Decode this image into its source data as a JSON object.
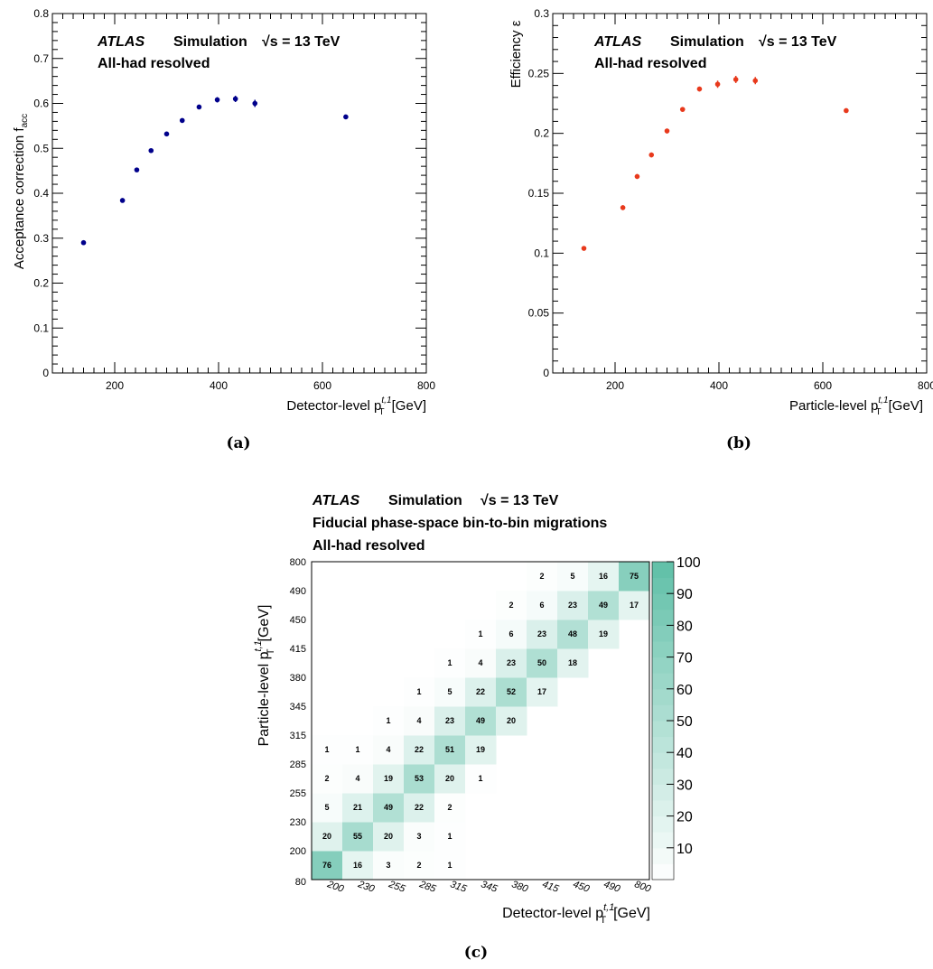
{
  "panels": [
    {
      "label": "(a)",
      "atlas": "ATLAS",
      "sim": "Simulation",
      "energy": "√s = 13 TeV",
      "subtitle": "All-had resolved"
    },
    {
      "label": "(b)",
      "atlas": "ATLAS",
      "sim": "Simulation",
      "energy": "√s = 13 TeV",
      "subtitle": "All-had resolved"
    },
    {
      "label": "(c)",
      "atlas": "ATLAS",
      "sim": "Simulation",
      "energy": "√s = 13 TeV",
      "line2": "Fiducial phase-space bin-to-bin migrations",
      "line3": "All-had resolved"
    }
  ],
  "chart_data": [
    {
      "type": "scatter",
      "ylabel": "Acceptance correction f",
      "ylabel_sub": "acc",
      "xlabel": "Detector-level p",
      "xlabel_unit": "[GeV]",
      "xlim": [
        80,
        800
      ],
      "ylim": [
        0,
        0.8
      ],
      "xticks": [
        200,
        400,
        600,
        800
      ],
      "yticks": [
        0,
        0.1,
        0.2,
        0.3,
        0.4,
        0.5,
        0.6,
        0.7,
        0.8
      ],
      "color": "#00008b",
      "x": [
        140,
        215,
        242.5,
        270,
        300,
        330,
        362.5,
        397.5,
        432.5,
        470,
        645
      ],
      "y": [
        0.29,
        0.384,
        0.452,
        0.495,
        0.532,
        0.562,
        0.592,
        0.608,
        0.61,
        0.6,
        0.57
      ],
      "yerr": [
        0.002,
        0.003,
        0.004,
        0.004,
        0.004,
        0.005,
        0.005,
        0.006,
        0.007,
        0.008,
        0.002
      ]
    },
    {
      "type": "scatter",
      "ylabel": "Efficiency ε",
      "xlabel": "Particle-level p",
      "xlabel_unit": "[GeV]",
      "xlim": [
        80,
        800
      ],
      "ylim": [
        0,
        0.3
      ],
      "xticks": [
        200,
        400,
        600,
        800
      ],
      "yticks": [
        0,
        0.05,
        0.1,
        0.15,
        0.2,
        0.25,
        0.3
      ],
      "color": "#e8391c",
      "x": [
        140,
        215,
        242.5,
        270,
        300,
        330,
        362.5,
        397.5,
        432.5,
        470,
        645
      ],
      "y": [
        0.104,
        0.138,
        0.164,
        0.182,
        0.202,
        0.22,
        0.237,
        0.241,
        0.245,
        0.244,
        0.219
      ],
      "yerr": [
        0.001,
        0.002,
        0.002,
        0.002,
        0.002,
        0.002,
        0.002,
        0.003,
        0.003,
        0.003,
        0.001
      ]
    },
    {
      "type": "heatmap",
      "xlabel": "Detector-level p",
      "xlabel_unit": "[GeV]",
      "ylabel": "Particle-level p",
      "ylabel_unit": "[GeV]",
      "bin_edges": [
        "80",
        "200",
        "230",
        "255",
        "285",
        "315",
        "345",
        "380",
        "415",
        "450",
        "490",
        "800"
      ],
      "xtick_labels": [
        "200",
        "230",
        "255",
        "285",
        "315",
        "345",
        "380",
        "415",
        "450",
        "490",
        "800"
      ],
      "ytick_labels": [
        "200",
        "230",
        "255",
        "285",
        "315",
        "345",
        "380",
        "415",
        "450",
        "490",
        "800"
      ],
      "origin_label": "80",
      "color_scale": [
        0,
        100
      ],
      "color_ticks": [
        10,
        20,
        30,
        40,
        50,
        60,
        70,
        80,
        90,
        100
      ],
      "colormap": [
        "#ffffff",
        "#5fbfa7"
      ],
      "matrix": [
        [
          76,
          16,
          3,
          2,
          1,
          null,
          null,
          null,
          null,
          null,
          null
        ],
        [
          20,
          55,
          20,
          3,
          1,
          null,
          null,
          null,
          null,
          null,
          null
        ],
        [
          5,
          21,
          49,
          22,
          2,
          null,
          null,
          null,
          null,
          null,
          null
        ],
        [
          2,
          4,
          19,
          53,
          20,
          1,
          null,
          null,
          null,
          null,
          null
        ],
        [
          1,
          1,
          4,
          22,
          51,
          19,
          null,
          null,
          null,
          null,
          null
        ],
        [
          null,
          null,
          1,
          4,
          23,
          49,
          20,
          null,
          null,
          null,
          null
        ],
        [
          null,
          null,
          null,
          1,
          5,
          22,
          52,
          17,
          null,
          null,
          null
        ],
        [
          null,
          null,
          null,
          null,
          1,
          4,
          23,
          50,
          18,
          null,
          null
        ],
        [
          null,
          null,
          null,
          null,
          null,
          1,
          6,
          23,
          48,
          19,
          null
        ],
        [
          null,
          null,
          null,
          null,
          null,
          null,
          2,
          6,
          23,
          49,
          17
        ],
        [
          null,
          null,
          null,
          null,
          null,
          null,
          null,
          2,
          5,
          16,
          75
        ]
      ]
    }
  ]
}
